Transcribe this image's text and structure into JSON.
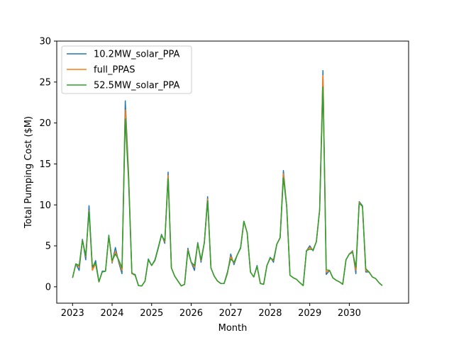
{
  "chart_data": {
    "type": "line",
    "xlabel": "Month",
    "ylabel": "Total Pumping Cost ($M)",
    "xlim": [
      2022.6,
      2031.5
    ],
    "ylim": [
      -2,
      30
    ],
    "x_ticks": [
      2023,
      2024,
      2025,
      2026,
      2027,
      2028,
      2029,
      2030
    ],
    "y_ticks": [
      0,
      5,
      10,
      15,
      20,
      25,
      30
    ],
    "grid": false,
    "legend_position": "top-left",
    "x_start_year": 2023,
    "points_per_year": 12,
    "series": [
      {
        "name": "10.2MW_solar_PPA",
        "color": "#1f77b4",
        "values": [
          1.1,
          2.8,
          2.0,
          5.8,
          3.3,
          9.9,
          2.2,
          3.2,
          0.6,
          1.9,
          1.9,
          6.3,
          2.9,
          4.8,
          3.0,
          1.6,
          22.7,
          13.9,
          1.6,
          1.5,
          0.15,
          0.1,
          0.7,
          3.4,
          2.6,
          3.3,
          4.8,
          6.4,
          5.3,
          14.0,
          2.3,
          1.3,
          0.7,
          0.1,
          0.3,
          4.7,
          3.0,
          2.0,
          5.4,
          3.0,
          5.4,
          11.0,
          2.3,
          1.3,
          0.7,
          0.4,
          0.4,
          1.6,
          4.0,
          2.7,
          3.9,
          4.8,
          8.0,
          6.6,
          1.8,
          1.2,
          2.6,
          0.4,
          0.3,
          2.6,
          3.6,
          3.0,
          5.2,
          6.0,
          14.2,
          9.8,
          1.4,
          1.1,
          0.9,
          0.5,
          0.15,
          4.4,
          5.0,
          4.4,
          5.5,
          9.4,
          26.4,
          1.5,
          2.0,
          1.1,
          0.8,
          0.6,
          0.3,
          3.3,
          4.0,
          4.4,
          1.6,
          10.4,
          9.9,
          1.8,
          1.8,
          1.2,
          1.0,
          0.5,
          0.15
        ]
      },
      {
        "name": "full_PPAS",
        "color": "#ff7f0e",
        "values": [
          1.1,
          2.8,
          2.4,
          5.7,
          3.7,
          9.3,
          2.0,
          2.8,
          0.6,
          1.8,
          1.9,
          6.2,
          3.0,
          4.3,
          3.2,
          2.0,
          21.6,
          13.5,
          1.6,
          1.4,
          0.15,
          0.1,
          0.7,
          3.3,
          2.6,
          3.2,
          4.7,
          6.3,
          5.5,
          13.6,
          2.3,
          1.3,
          0.7,
          0.1,
          0.3,
          4.5,
          3.0,
          2.4,
          5.3,
          3.2,
          5.4,
          10.7,
          2.3,
          1.3,
          0.7,
          0.4,
          0.4,
          1.7,
          3.7,
          2.9,
          3.9,
          4.7,
          8.0,
          6.6,
          1.8,
          1.2,
          2.5,
          0.4,
          0.3,
          2.6,
          3.5,
          3.2,
          5.2,
          6.0,
          13.8,
          9.8,
          1.4,
          1.1,
          0.9,
          0.5,
          0.15,
          4.4,
          4.8,
          4.5,
          5.5,
          9.4,
          25.8,
          1.8,
          2.0,
          1.1,
          0.8,
          0.6,
          0.3,
          3.3,
          4.0,
          4.3,
          2.0,
          10.3,
          9.8,
          2.0,
          1.8,
          1.2,
          1.0,
          0.5,
          0.15
        ]
      },
      {
        "name": "52.5MW_solar_PPA",
        "color": "#2ca02c",
        "values": [
          1.1,
          2.8,
          2.6,
          5.7,
          3.8,
          9.2,
          2.5,
          2.9,
          0.6,
          1.8,
          1.9,
          6.2,
          3.2,
          4.0,
          3.3,
          2.3,
          20.5,
          13.0,
          1.7,
          1.4,
          0.15,
          0.1,
          0.7,
          3.3,
          2.6,
          3.2,
          4.7,
          6.3,
          5.6,
          13.2,
          2.3,
          1.3,
          0.7,
          0.1,
          0.3,
          4.4,
          3.0,
          2.6,
          5.3,
          3.3,
          5.4,
          10.5,
          2.3,
          1.3,
          0.7,
          0.4,
          0.4,
          1.8,
          3.4,
          3.0,
          3.9,
          4.7,
          8.0,
          6.6,
          1.8,
          1.2,
          2.5,
          0.4,
          0.3,
          2.6,
          3.5,
          3.3,
          5.2,
          6.0,
          13.3,
          9.8,
          1.4,
          1.1,
          0.9,
          0.5,
          0.15,
          4.4,
          4.6,
          4.5,
          5.5,
          9.4,
          24.4,
          2.1,
          2.0,
          1.1,
          0.8,
          0.6,
          0.3,
          3.3,
          4.0,
          4.2,
          2.4,
          10.2,
          9.8,
          2.2,
          1.8,
          1.2,
          1.0,
          0.5,
          0.15
        ]
      }
    ]
  }
}
